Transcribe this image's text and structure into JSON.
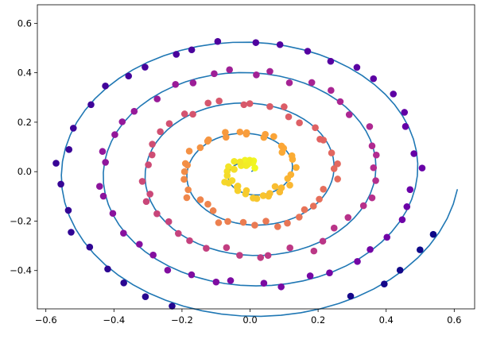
{
  "chart_data": {
    "type": "scatter",
    "title": "",
    "xlabel": "",
    "ylabel": "",
    "xlim": [
      -0.625,
      0.66
    ],
    "ylim": [
      -0.555,
      0.675
    ],
    "grid": false,
    "legend": "none",
    "x_ticks": [
      {
        "value": -0.6,
        "label": "−0.6"
      },
      {
        "value": -0.4,
        "label": "−0.4"
      },
      {
        "value": -0.2,
        "label": "−0.2"
      },
      {
        "value": 0.0,
        "label": "0.0"
      },
      {
        "value": 0.2,
        "label": "0.2"
      },
      {
        "value": 0.4,
        "label": "0.4"
      },
      {
        "value": 0.6,
        "label": "0.6"
      }
    ],
    "y_ticks": [
      {
        "value": -0.4,
        "label": "−0.4"
      },
      {
        "value": -0.2,
        "label": "−0.2"
      },
      {
        "value": 0.0,
        "label": "0.0"
      },
      {
        "value": 0.2,
        "label": "0.2"
      },
      {
        "value": 0.4,
        "label": "0.4"
      },
      {
        "value": 0.6,
        "label": "0.6"
      }
    ],
    "line_series": {
      "color": "#1f77b4",
      "model": "archimedean-spiral",
      "theta_start": 0.2,
      "theta_end": 31.3,
      "growth_per_radian": 0.0196,
      "center": [
        0.0,
        0.0
      ],
      "sample_step": 0.1
    },
    "scatter_series": {
      "colormap": "plasma",
      "colormap_stops": [
        "#0d0887",
        "#6a00a8",
        "#b12a90",
        "#e16462",
        "#fca636",
        "#f0f921"
      ],
      "count": 195,
      "model": "archimedean-spiral-points",
      "theta_start": 1.2,
      "theta_end": 31.0,
      "growth_per_radian": 0.0196,
      "noise": 0.018
    }
  }
}
